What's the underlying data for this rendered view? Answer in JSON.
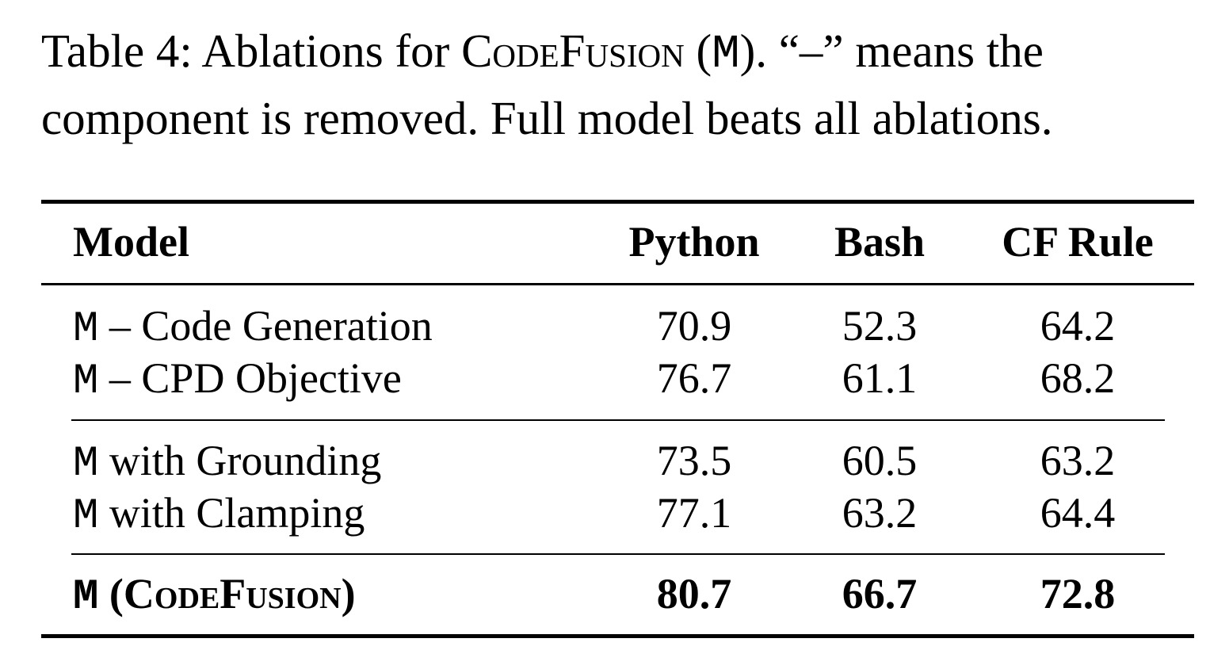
{
  "caption": {
    "label": "Table 4:",
    "text_before": "Ablations for",
    "model_name": "CodeFusion",
    "model_symbol": "(M).",
    "text_after_line1": "“–” means the",
    "text_line2": "component is removed. Full model beats all ablations."
  },
  "table": {
    "headers": {
      "model": "Model",
      "python": "Python",
      "bash": "Bash",
      "cf_rule": "CF Rule"
    },
    "rows": [
      {
        "prefix": "M",
        "label": " – Code Generation",
        "python": "70.9",
        "bash": "52.3",
        "cf_rule": "64.2"
      },
      {
        "prefix": "M",
        "label": " – CPD Objective",
        "python": "76.7",
        "bash": "61.1",
        "cf_rule": "68.2"
      },
      {
        "prefix": "M",
        "label": " with Grounding",
        "python": "73.5",
        "bash": "60.5",
        "cf_rule": "63.2"
      },
      {
        "prefix": "M",
        "label": " with Clamping",
        "python": "77.1",
        "bash": "63.2",
        "cf_rule": "64.4"
      }
    ],
    "final_row": {
      "prefix": "M",
      "open": " (",
      "name": "CodeFusion",
      "close": ")",
      "python": "80.7",
      "bash": "66.7",
      "cf_rule": "72.8"
    }
  }
}
